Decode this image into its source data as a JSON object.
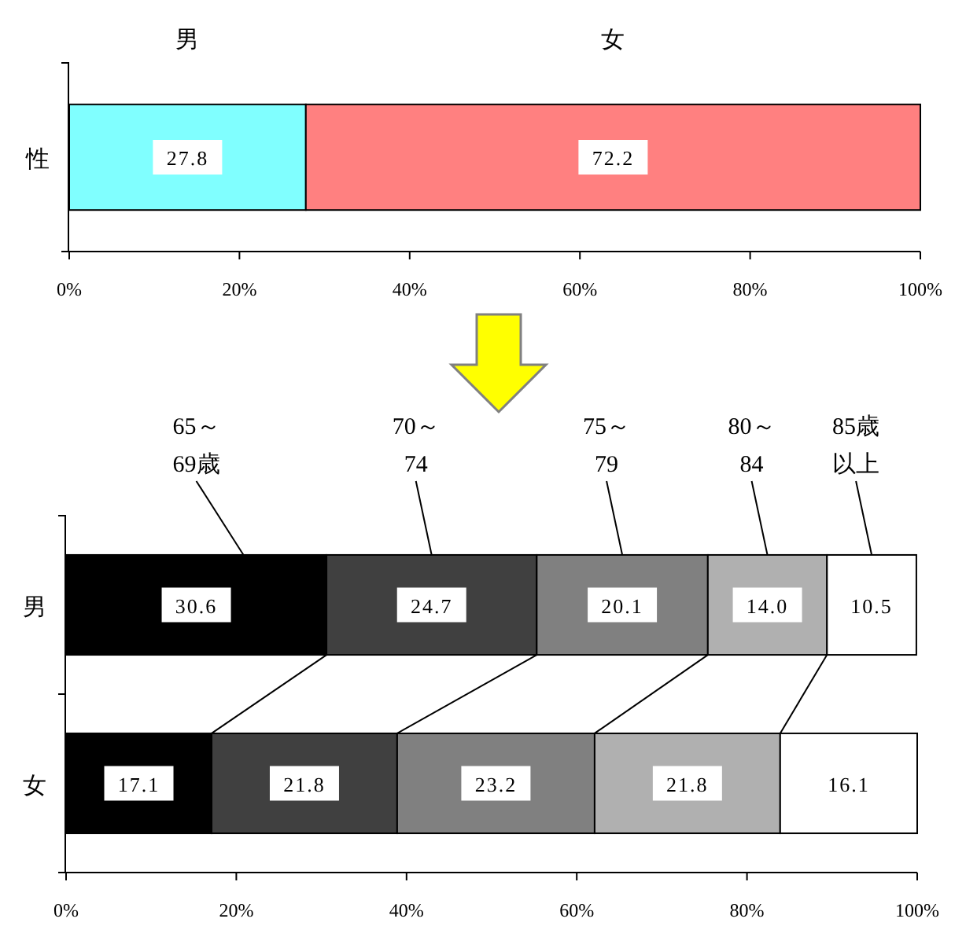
{
  "chart_data": [
    {
      "type": "bar",
      "orientation": "horizontal",
      "stacked": true,
      "categories": [
        "性"
      ],
      "data_labels": true,
      "xlim": [
        0,
        100
      ],
      "xticks": [
        {
          "value": 0,
          "label": "0%"
        },
        {
          "value": 20,
          "label": "20%"
        },
        {
          "value": 40,
          "label": "40%"
        },
        {
          "value": 60,
          "label": "60%"
        },
        {
          "value": 80,
          "label": "80%"
        },
        {
          "value": 100,
          "label": "100%"
        }
      ],
      "series": [
        {
          "name": "男",
          "color": "#80ffff",
          "values": [
            27.8
          ]
        },
        {
          "name": "女",
          "color": "#ff8080",
          "values": [
            72.2
          ]
        }
      ]
    },
    {
      "type": "bar",
      "orientation": "horizontal",
      "stacked": true,
      "categories": [
        "男",
        "女"
      ],
      "data_labels": true,
      "xlim": [
        0,
        100
      ],
      "xticks": [
        {
          "value": 0,
          "label": "0%"
        },
        {
          "value": 20,
          "label": "20%"
        },
        {
          "value": 40,
          "label": "40%"
        },
        {
          "value": 60,
          "label": "60%"
        },
        {
          "value": 80,
          "label": "80%"
        },
        {
          "value": 100,
          "label": "100%"
        }
      ],
      "series": [
        {
          "name": "65～69歳",
          "color": "#000000",
          "values": [
            30.6,
            17.1
          ]
        },
        {
          "name": "70～74",
          "color": "#404040",
          "values": [
            24.7,
            21.8
          ]
        },
        {
          "name": "75～79",
          "color": "#808080",
          "values": [
            20.1,
            23.2
          ]
        },
        {
          "name": "80～84",
          "color": "#b0b0b0",
          "values": [
            14.0,
            21.8
          ],
          "value_labels": [
            "14.0",
            "21.8"
          ]
        },
        {
          "name": "85歳以上",
          "color": "#ffffff",
          "values": [
            10.5,
            16.1
          ]
        }
      ]
    }
  ]
}
